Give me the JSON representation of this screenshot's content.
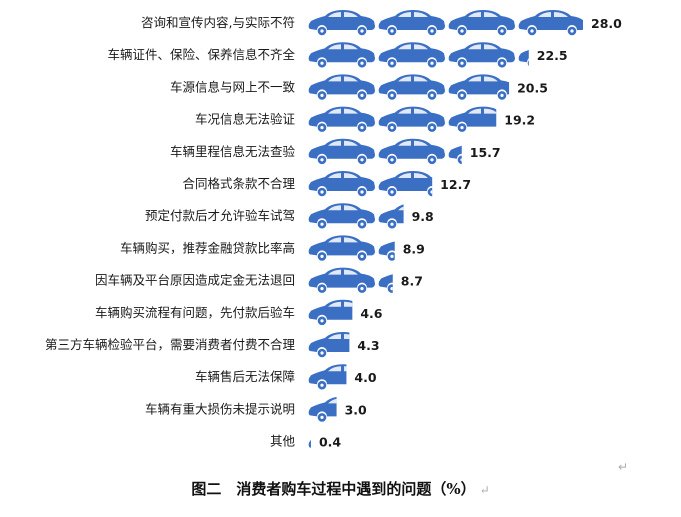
{
  "chart_data": {
    "type": "bar",
    "orientation": "horizontal",
    "categories": [
      "咨询和宣传内容,与实际不符",
      "车辆证件、保险、保养信息不齐全",
      "车源信息与网上不一致",
      "车况信息无法验证",
      "车辆里程信息无法查验",
      "合同格式条款不合理",
      "预定付款后才允许验车试驾",
      "车辆购买，推荐金融贷款比率高",
      "因车辆及平台原因造成定金无法退回",
      "车辆购买流程有问题，先付款后验车",
      "第三方车辆检验平台，需要消费者付费不合理",
      "车辆售后无法保障",
      "车辆有重大损伤未提示说明",
      "其他"
    ],
    "values": [
      28.0,
      22.5,
      20.5,
      19.2,
      15.7,
      12.7,
      9.8,
      8.9,
      8.7,
      4.6,
      4.3,
      4.0,
      3.0,
      0.4
    ],
    "value_labels": [
      "28.0",
      "22.5",
      "20.5",
      "19.2",
      "15.7",
      "12.7",
      "9.8",
      "8.9",
      "8.7",
      "4.6",
      "4.3",
      "4.0",
      "3.0",
      "0.4"
    ],
    "title": "图二　消费者购车过程中遇到的问题（%）",
    "xlabel": "",
    "ylabel": "",
    "xlim": [
      0,
      28
    ],
    "grid": false,
    "legend": "none",
    "mark": "car-pictogram",
    "bar_color": "#3a6fc4"
  },
  "caption": {
    "text": "图二　消费者购车过程中遇到的问题（%）",
    "end_mark": "↵"
  },
  "para_mark": "↵"
}
